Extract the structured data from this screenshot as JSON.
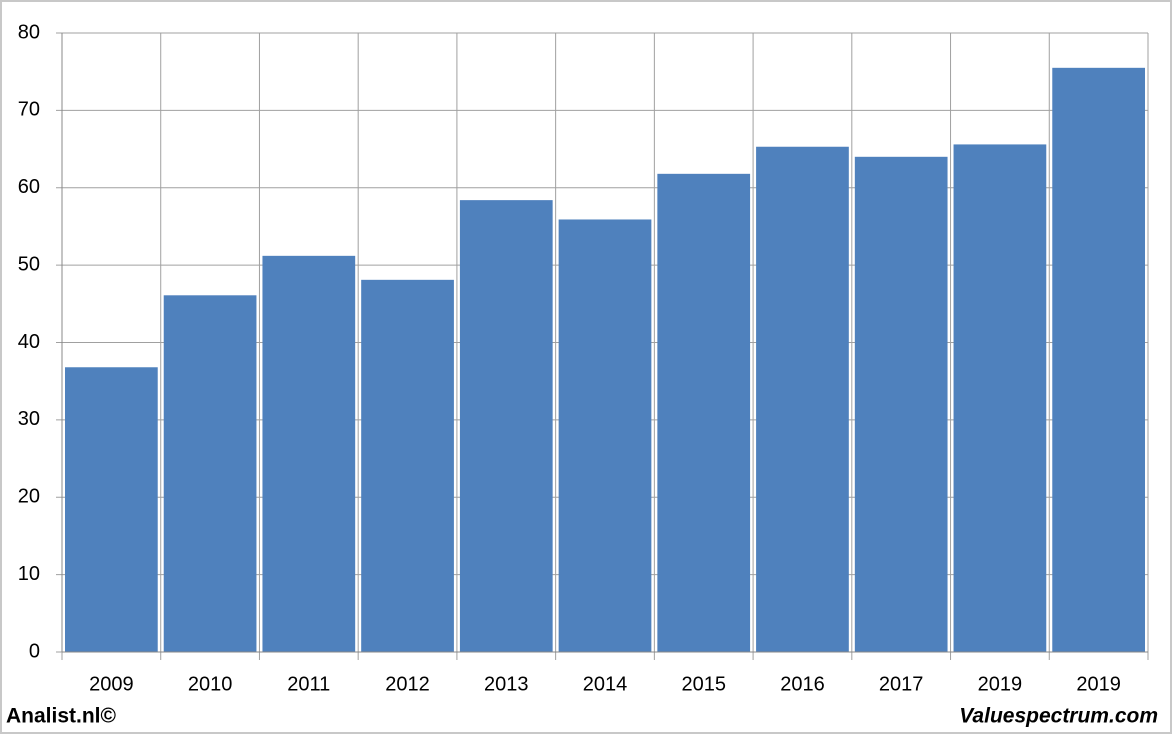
{
  "chart_data": {
    "type": "bar",
    "categories": [
      "2009",
      "2010",
      "2011",
      "2012",
      "2013",
      "2014",
      "2015",
      "2016",
      "2017",
      "2019",
      "2019"
    ],
    "values": [
      36.8,
      46.1,
      51.2,
      48.1,
      58.4,
      55.9,
      61.8,
      65.3,
      64.0,
      65.6,
      75.5
    ],
    "color": "#4f81bd",
    "ylim": [
      0,
      80
    ],
    "yticks": [
      0,
      10,
      20,
      30,
      40,
      50,
      60,
      70,
      80
    ],
    "grid": true,
    "annotations": [
      "Analist.nl©",
      "Valuespectrum.com"
    ]
  }
}
